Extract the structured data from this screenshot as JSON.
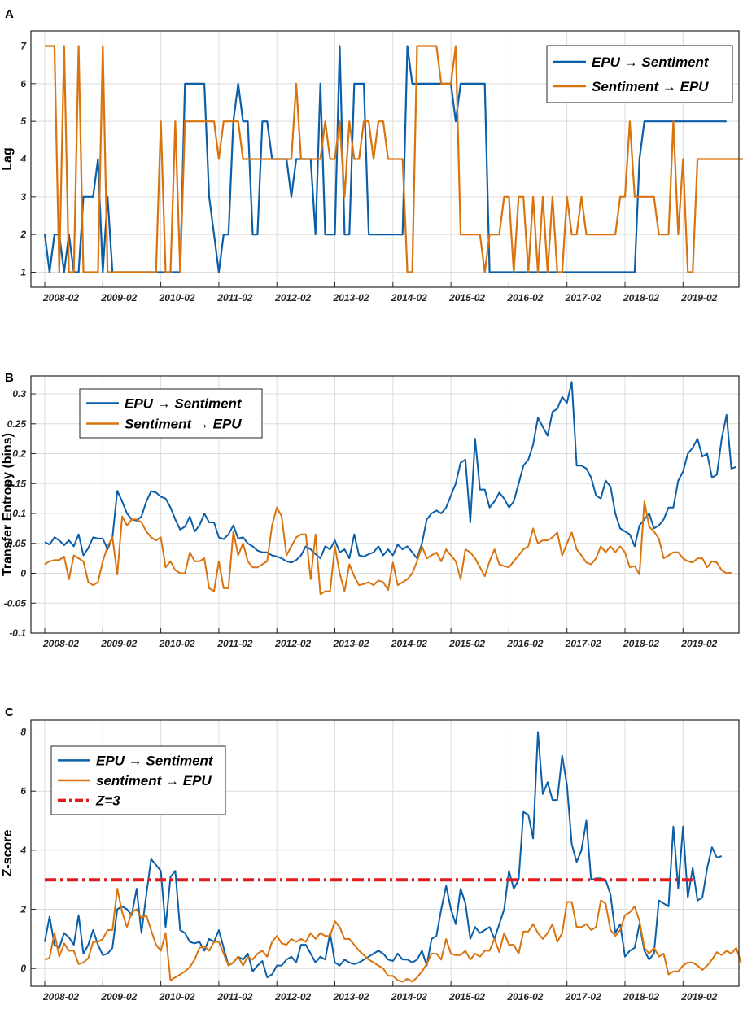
{
  "colors": {
    "epu": "#0b5ea8",
    "sent": "#d9730d",
    "threshold": "#e31a1c",
    "grid": "#dcdcdc",
    "axis": "#262626"
  },
  "x_ticks": [
    "2008-02",
    "2009-02",
    "2010-02",
    "2011-02",
    "2012-02",
    "2013-02",
    "2014-02",
    "2015-02",
    "2016-02",
    "2017-02",
    "2018-02",
    "2019-02"
  ],
  "chart_data": [
    {
      "id": "A",
      "panel": "A",
      "type": "line",
      "ylabel": "Lag",
      "xlim": [
        0,
        135
      ],
      "ylim": [
        0.6,
        7.4
      ],
      "yticks": [
        1,
        2,
        3,
        4,
        5,
        6,
        7
      ],
      "ytick_labels": [
        "1",
        "2",
        "3",
        "4",
        "5",
        "6",
        "7"
      ],
      "legend": {
        "position": "top-right",
        "entries": [
          "EPU → Sentiment",
          "Sentiment → EPU"
        ]
      },
      "series": [
        {
          "name": "EPU → Sentiment",
          "color": "#0b5ea8",
          "values": [
            2,
            1,
            2,
            2,
            1,
            2,
            1,
            1,
            3,
            3,
            3,
            4,
            1,
            3,
            1,
            1,
            1,
            1,
            1,
            1,
            1,
            1,
            1,
            1,
            1,
            1,
            1,
            1,
            1,
            6,
            6,
            6,
            6,
            6,
            3,
            2,
            1,
            2,
            2,
            5,
            6,
            5,
            5,
            2,
            2,
            5,
            5,
            4,
            4,
            4,
            4,
            3,
            4,
            4,
            4,
            4,
            2,
            6,
            2,
            2,
            2,
            7,
            2,
            2,
            6,
            6,
            6,
            2,
            2,
            2,
            2,
            2,
            2,
            2,
            2,
            7,
            6,
            6,
            6,
            6,
            6,
            6,
            6,
            6,
            6,
            5,
            6,
            6,
            6,
            6,
            6,
            6,
            1,
            1,
            1,
            1,
            1,
            1,
            1,
            1,
            1,
            1,
            1,
            1,
            1,
            1,
            1,
            1,
            1,
            1,
            1,
            1,
            1,
            1,
            1,
            1,
            1,
            1,
            1,
            1,
            1,
            1,
            1,
            4,
            5,
            5,
            5,
            5,
            5,
            5,
            5,
            5,
            5,
            5,
            5,
            5,
            5,
            5,
            5,
            5,
            5,
            5
          ]
        },
        {
          "name": "Sentiment → EPU",
          "color": "#d9730d",
          "values": [
            7,
            7,
            7,
            1,
            7,
            1,
            1,
            7,
            1,
            1,
            1,
            1,
            7,
            1,
            1,
            1,
            1,
            1,
            1,
            1,
            1,
            1,
            1,
            1,
            5,
            1,
            1,
            5,
            1,
            5,
            5,
            5,
            5,
            5,
            5,
            5,
            4,
            5,
            5,
            5,
            5,
            4,
            4,
            4,
            4,
            4,
            4,
            4,
            4,
            4,
            4,
            4,
            6,
            4,
            4,
            4,
            4,
            4,
            5,
            4,
            4,
            5,
            3,
            5,
            4,
            4,
            5,
            5,
            4,
            5,
            5,
            4,
            4,
            4,
            4,
            1,
            1,
            7,
            7,
            7,
            7,
            7,
            6,
            6,
            6,
            7,
            2,
            2,
            2,
            2,
            2,
            1,
            2,
            2,
            2,
            3,
            3,
            1,
            3,
            3,
            1,
            3,
            1,
            3,
            1,
            3,
            1,
            1,
            3,
            2,
            2,
            3,
            2,
            2,
            2,
            2,
            2,
            2,
            2,
            3,
            3,
            5,
            3,
            3,
            3,
            3,
            3,
            2,
            2,
            2,
            5,
            2,
            4,
            1,
            1,
            4,
            4,
            4,
            4,
            4,
            4,
            4,
            4,
            4,
            4,
            4
          ]
        }
      ]
    },
    {
      "id": "B",
      "panel": "B",
      "type": "line",
      "ylabel": "Transfer Entropy (bins)",
      "xlim": [
        0,
        135
      ],
      "ylim": [
        -0.1,
        0.33
      ],
      "yticks": [
        -0.1,
        -0.05,
        0,
        0.05,
        0.1,
        0.15,
        0.2,
        0.25,
        0.3
      ],
      "ytick_labels": [
        "-0.1",
        "-0.05",
        "0",
        "0.05",
        "0.1",
        "0.15",
        "0.2",
        "0.25",
        "0.3"
      ],
      "legend": {
        "position": "top-left",
        "entries": [
          "EPU → Sentiment",
          "Sentiment → EPU"
        ]
      },
      "series": [
        {
          "name": "EPU → Sentiment",
          "color": "#0b5ea8",
          "values": [
            0.052,
            0.048,
            0.06,
            0.055,
            0.047,
            0.055,
            0.045,
            0.065,
            0.03,
            0.042,
            0.06,
            0.058,
            0.058,
            0.04,
            0.06,
            0.138,
            0.12,
            0.1,
            0.09,
            0.088,
            0.095,
            0.12,
            0.137,
            0.135,
            0.128,
            0.125,
            0.11,
            0.09,
            0.073,
            0.078,
            0.095,
            0.07,
            0.08,
            0.1,
            0.085,
            0.085,
            0.06,
            0.057,
            0.065,
            0.08,
            0.058,
            0.06,
            0.05,
            0.045,
            0.038,
            0.035,
            0.035,
            0.03,
            0.028,
            0.025,
            0.02,
            0.018,
            0.022,
            0.03,
            0.045,
            0.04,
            0.032,
            0.025,
            0.045,
            0.04,
            0.055,
            0.035,
            0.04,
            0.025,
            0.065,
            0.03,
            0.028,
            0.032,
            0.035,
            0.045,
            0.03,
            0.04,
            0.03,
            0.048,
            0.04,
            0.045,
            0.035,
            0.025,
            0.05,
            0.09,
            0.1,
            0.105,
            0.1,
            0.11,
            0.13,
            0.15,
            0.185,
            0.19,
            0.085,
            0.225,
            0.14,
            0.14,
            0.11,
            0.12,
            0.135,
            0.125,
            0.11,
            0.12,
            0.15,
            0.18,
            0.19,
            0.215,
            0.26,
            0.245,
            0.23,
            0.27,
            0.275,
            0.295,
            0.285,
            0.32,
            0.18,
            0.18,
            0.175,
            0.16,
            0.13,
            0.125,
            0.155,
            0.145,
            0.1,
            0.075,
            0.07,
            0.065,
            0.045,
            0.08,
            0.09,
            0.1,
            0.075,
            0.08,
            0.09,
            0.11,
            0.11,
            0.155,
            0.17,
            0.2,
            0.21,
            0.225,
            0.195,
            0.2,
            0.16,
            0.165,
            0.225,
            0.265,
            0.175,
            0.178
          ]
        },
        {
          "name": "Sentiment → EPU",
          "color": "#d9730d",
          "values": [
            0.015,
            0.02,
            0.022,
            0.022,
            0.028,
            -0.01,
            0.03,
            0.025,
            0.02,
            -0.015,
            -0.02,
            -0.015,
            0.02,
            0.045,
            0.06,
            -0.002,
            0.095,
            0.08,
            0.09,
            0.09,
            0.085,
            0.07,
            0.06,
            0.055,
            0.06,
            0.01,
            0.02,
            0.005,
            0,
            0,
            0.035,
            0.02,
            0.02,
            0.025,
            -0.025,
            -0.03,
            0.02,
            -0.025,
            -0.025,
            0.07,
            0.03,
            0.05,
            0.02,
            0.01,
            0.01,
            0.015,
            0.02,
            0.08,
            0.11,
            0.095,
            0.03,
            0.045,
            0.06,
            0.065,
            0.065,
            -0.01,
            0.065,
            -0.035,
            -0.03,
            -0.03,
            0.045,
            0,
            -0.03,
            0.015,
            -0.005,
            -0.02,
            -0.018,
            -0.015,
            -0.02,
            -0.012,
            -0.015,
            -0.028,
            0.018,
            -0.02,
            -0.015,
            -0.01,
            0,
            0.02,
            0.045,
            0.025,
            0.03,
            0.035,
            0.02,
            0.04,
            0.03,
            0.02,
            -0.01,
            0.04,
            0.035,
            0.025,
            0.01,
            -0.005,
            0.02,
            0.04,
            0.015,
            0.012,
            0.01,
            0.02,
            0.03,
            0.04,
            0.045,
            0.075,
            0.05,
            0.055,
            0.055,
            0.06,
            0.068,
            0.03,
            0.05,
            0.068,
            0.04,
            0.03,
            0.018,
            0.015,
            0.025,
            0.045,
            0.035,
            0.045,
            0.035,
            0.045,
            0.035,
            0.01,
            0.012,
            -0.002,
            0.12,
            0.078,
            0.07,
            0.058,
            0.025,
            0.03,
            0.035,
            0.035,
            0.025,
            0.02,
            0.018,
            0.025,
            0.025,
            0.01,
            0.02,
            0.018,
            0.005,
            0,
            0.001
          ]
        }
      ]
    },
    {
      "id": "C",
      "panel": "C",
      "type": "line",
      "ylabel": "Z-score",
      "xlim": [
        0,
        135
      ],
      "ylim": [
        -0.6,
        8.4
      ],
      "yticks": [
        0,
        2,
        4,
        6,
        8
      ],
      "ytick_labels": [
        "0",
        "2",
        "4",
        "6",
        "8"
      ],
      "legend": {
        "position": "top-left",
        "entries": [
          "EPU → Sentiment",
          "sentiment → EPU",
          "Z=3"
        ]
      },
      "series": [
        {
          "name": "EPU → Sentiment",
          "color": "#0b5ea8",
          "values": [
            0.9,
            1.75,
            0.8,
            0.7,
            1.2,
            1.05,
            0.8,
            1.8,
            0.5,
            0.8,
            1.3,
            0.8,
            0.45,
            0.5,
            0.7,
            2.0,
            2.1,
            2.0,
            1.8,
            2.7,
            1.2,
            2.5,
            3.7,
            3.5,
            3.3,
            1.4,
            3.1,
            3.3,
            1.3,
            1.2,
            0.9,
            0.85,
            0.9,
            0.6,
            1.0,
            0.9,
            1.3,
            0.7,
            0.1,
            0.2,
            0.4,
            0.3,
            0.5,
            -0.1,
            0.1,
            0.25,
            -0.3,
            -0.2,
            0.1,
            0.1,
            0.3,
            0.4,
            0.2,
            0.8,
            0.8,
            0.5,
            0.2,
            0.4,
            0.3,
            1.2,
            0.2,
            0.1,
            0.3,
            0.2,
            0.15,
            0.2,
            0.3,
            0.4,
            0.5,
            0.6,
            0.5,
            0.3,
            0.25,
            0.5,
            0.3,
            0.3,
            0.2,
            0.3,
            0.6,
            0.1,
            1.0,
            1.1,
            2.0,
            2.8,
            2.0,
            1.5,
            2.7,
            2.2,
            1.0,
            1.4,
            1.2,
            1.3,
            1.4,
            1.0,
            1.5,
            2.0,
            3.3,
            2.7,
            3.0,
            5.3,
            5.2,
            4.4,
            8.0,
            5.9,
            6.3,
            5.7,
            5.7,
            7.2,
            6.2,
            4.2,
            3.6,
            4.0,
            5.0,
            3.0,
            3.05,
            3.05,
            3.0,
            2.5,
            1.2,
            1.5,
            0.4,
            0.6,
            0.7,
            1.5,
            0.6,
            0.3,
            0.5,
            2.3,
            2.2,
            2.1,
            4.8,
            2.7,
            4.8,
            2.4,
            3.4,
            2.3,
            2.4,
            3.4,
            4.1,
            3.75,
            3.8
          ]
        },
        {
          "name": "sentiment → EPU",
          "color": "#d9730d",
          "values": [
            0.3,
            0.35,
            1.2,
            0.4,
            0.85,
            0.6,
            0.6,
            0.15,
            0.2,
            0.35,
            0.9,
            0.9,
            1.0,
            1.3,
            1.3,
            2.7,
            1.9,
            1.4,
            1.9,
            2.0,
            1.7,
            1.8,
            1.3,
            0.8,
            0.6,
            1.2,
            -0.4,
            -0.3,
            -0.2,
            -0.1,
            0.05,
            0.3,
            0.7,
            0.75,
            0.6,
            0.9,
            0.9,
            0.5,
            0.1,
            0.2,
            0.4,
            0.1,
            0.4,
            0.3,
            0.5,
            0.6,
            0.4,
            0.9,
            1.1,
            0.85,
            0.8,
            1.0,
            0.9,
            1.0,
            0.9,
            1.2,
            1.0,
            1.2,
            1.1,
            1.1,
            1.6,
            1.4,
            1.0,
            1.0,
            0.8,
            0.6,
            0.45,
            0.3,
            0.2,
            0.1,
            0.0,
            -0.25,
            -0.25,
            -0.4,
            -0.45,
            -0.35,
            -0.45,
            -0.3,
            -0.1,
            0.15,
            0.5,
            0.5,
            0.3,
            1.0,
            0.5,
            0.45,
            0.45,
            0.6,
            0.3,
            0.5,
            0.4,
            0.6,
            0.6,
            1.0,
            0.55,
            1.2,
            0.8,
            0.8,
            0.5,
            1.25,
            1.25,
            1.5,
            1.2,
            1.0,
            1.2,
            1.5,
            0.9,
            1.2,
            2.25,
            2.25,
            1.4,
            1.4,
            1.5,
            1.3,
            1.4,
            2.3,
            2.2,
            1.3,
            1.1,
            1.3,
            1.8,
            1.9,
            2.1,
            1.6,
            0.7,
            0.5,
            0.7,
            0.4,
            0.5,
            -0.2,
            -0.1,
            -0.1,
            0.1,
            0.2,
            0.2,
            0.1,
            -0.05,
            0.1,
            0.3,
            0.55,
            0.45,
            0.6,
            0.5,
            0.7,
            0.2
          ]
        },
        {
          "name": "Z=3",
          "color": "#e31a1c",
          "constant": 3,
          "style": "dash-dot"
        }
      ]
    }
  ]
}
